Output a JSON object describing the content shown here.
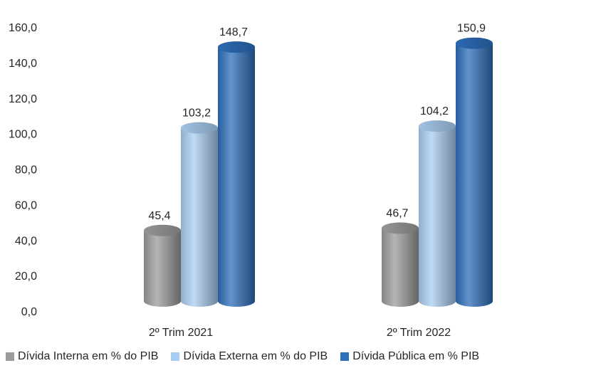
{
  "chart_data": {
    "type": "bar",
    "categories": [
      "2º Trim 2021",
      "2º Trim 2022"
    ],
    "series": [
      {
        "name": "Dívida Interna em % do PIB",
        "values": [
          45.4,
          46.7
        ],
        "labels": [
          "45,4",
          "46,7"
        ],
        "color": "#9c9c9c"
      },
      {
        "name": "Dívida Externa em % do PIB",
        "values": [
          103.2,
          104.2
        ],
        "labels": [
          "103,2",
          "104,2"
        ],
        "color": "#a9cdf0"
      },
      {
        "name": "Dívida Pública em % PIB",
        "values": [
          148.7,
          150.9
        ],
        "labels": [
          "148,7",
          "150,9"
        ],
        "color": "#2e6fba"
      }
    ],
    "ylim": [
      0,
      160
    ],
    "yticks": [
      0,
      20,
      40,
      60,
      80,
      100,
      120,
      140,
      160
    ],
    "ytick_labels": [
      "0,0",
      "20,0",
      "40,0",
      "60,0",
      "80,0",
      "100,0",
      "120,0",
      "140,0",
      "160,0"
    ],
    "grid": false,
    "legend_position": "bottom",
    "bar_style": "3d-cylinder"
  }
}
